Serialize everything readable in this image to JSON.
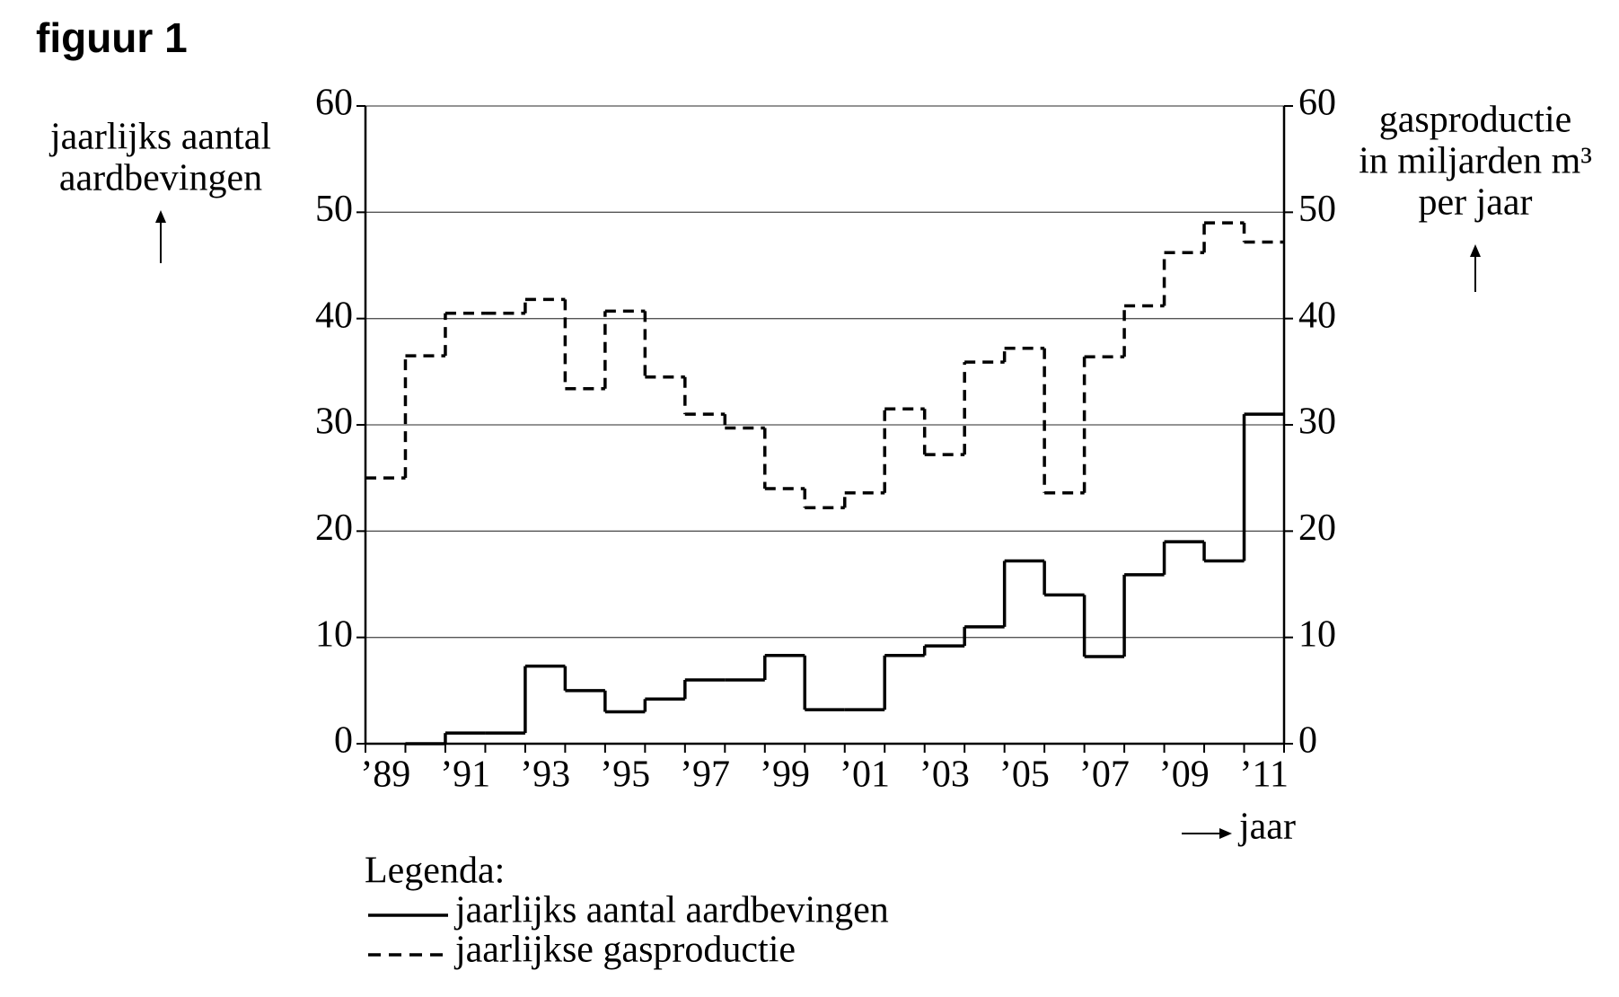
{
  "chart_data": {
    "type": "step",
    "title": "figuur 1",
    "ylabel": [
      "jaarlijks aantal",
      "aardbevingen"
    ],
    "y2label": [
      "gasproductie",
      "in miljarden m³",
      "per jaar"
    ],
    "xlabel": "jaar",
    "legend_title": "Legenda:",
    "categories": [
      "’89",
      null,
      "’91",
      null,
      "’93",
      null,
      "’95",
      null,
      "’97",
      null,
      "’99",
      null,
      "’01",
      null,
      "’03",
      null,
      "’05",
      null,
      "’07",
      null,
      "’09",
      null,
      "’11"
    ],
    "series": [
      {
        "name": "jaarlijks aantal aardbevingen",
        "color": "#000000",
        "line_style": "solid",
        "values": [
          null,
          0,
          1,
          1,
          7.3,
          5,
          3,
          4.2,
          6,
          6,
          8.3,
          3.2,
          3.2,
          8.3,
          9.2,
          11,
          17.2,
          14,
          8.2,
          15.9,
          19,
          17.2,
          31
        ]
      },
      {
        "name": "jaarlijkse gasproductie",
        "color": "#000000",
        "line_style": "dashed",
        "axis": "y2",
        "values": [
          25,
          36.5,
          40.5,
          40.5,
          41.8,
          33.4,
          40.7,
          34.5,
          31,
          29.7,
          24,
          22.2,
          23.6,
          31.5,
          27.2,
          35.9,
          37.2,
          23.6,
          36.4,
          41.2,
          46.2,
          49,
          47.2
        ]
      }
    ],
    "ylim": [
      0,
      60
    ],
    "yticks": [
      0,
      10,
      20,
      30,
      40,
      50,
      60
    ],
    "y2lim": [
      0,
      60
    ],
    "y2ticks": [
      0,
      10,
      20,
      30,
      40,
      50,
      60
    ],
    "grid": true
  }
}
